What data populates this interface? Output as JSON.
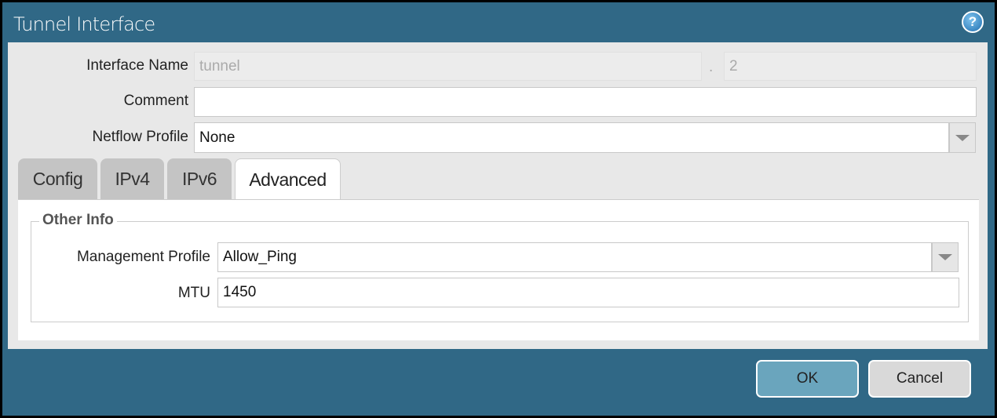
{
  "dialog": {
    "title": "Tunnel Interface",
    "help_icon": "help-icon"
  },
  "fields": {
    "interface_name_label": "Interface Name",
    "interface_name_value": "tunnel",
    "separator": ".",
    "interface_number": "2",
    "comment_label": "Comment",
    "comment_value": "",
    "netflow_label": "Netflow Profile",
    "netflow_value": "None"
  },
  "tabs": [
    {
      "label": "Config"
    },
    {
      "label": "IPv4"
    },
    {
      "label": "IPv6"
    },
    {
      "label": "Advanced",
      "active": true
    }
  ],
  "advanced": {
    "section_title": "Other Info",
    "mgmt_label": "Management Profile",
    "mgmt_value": "Allow_Ping",
    "mtu_label": "MTU",
    "mtu_value": "1450"
  },
  "buttons": {
    "ok": "OK",
    "cancel": "Cancel"
  },
  "colors": {
    "titlebar": "#306886",
    "ok_button": "#6aa5bd",
    "cancel_button": "#d9d9d9"
  }
}
